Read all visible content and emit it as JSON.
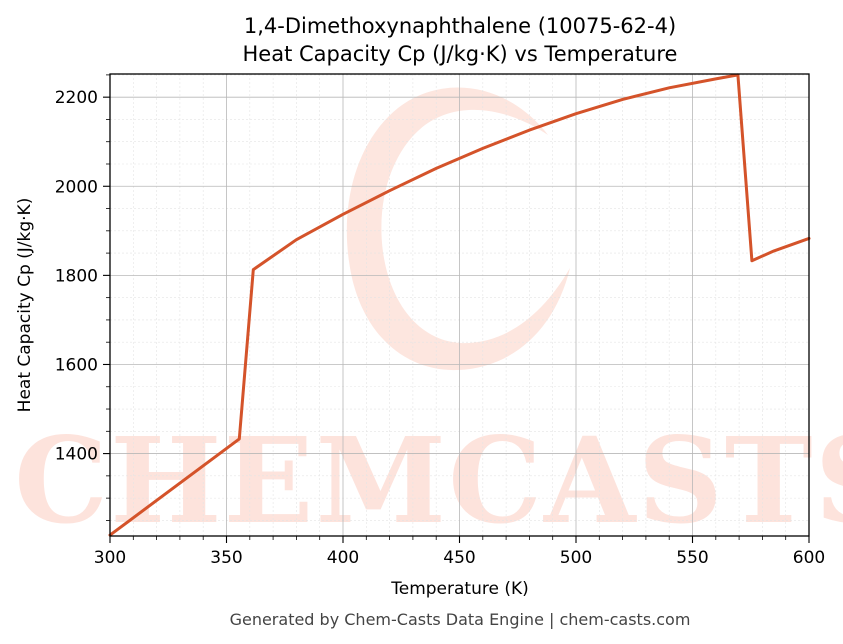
{
  "chart_data": {
    "type": "line",
    "title": "1,4-Dimethoxynaphthalene (10075-62-4)",
    "subtitle": "Heat Capacity Cp (J/kg·K) vs Temperature",
    "xlabel": "Temperature (K)",
    "ylabel": "Heat Capacity Cp (J/kg·K)",
    "xlim": [
      300,
      600
    ],
    "ylim": [
      1215,
      2252
    ],
    "xticks": [
      300,
      350,
      400,
      450,
      500,
      550,
      600
    ],
    "yticks": [
      1400,
      1600,
      1800,
      2000,
      2200
    ],
    "grid": true,
    "legend": "none",
    "series": [
      {
        "color": "#d4532a",
        "x": [
          300,
          355.5,
          361.5,
          380,
          400,
          420,
          440,
          460,
          480,
          500,
          520,
          540,
          560,
          569.5,
          575.5,
          585,
          600
        ],
        "y": [
          1217,
          1433,
          1813,
          1880,
          1937,
          1990,
          2040,
          2085,
          2126,
          2163,
          2195,
          2221,
          2241,
          2250,
          1833,
          1855,
          1883
        ]
      }
    ]
  },
  "watermark": {
    "text": "CHEMCASTS"
  },
  "footer": "Generated by Chem-Casts Data Engine | chem-casts.com"
}
